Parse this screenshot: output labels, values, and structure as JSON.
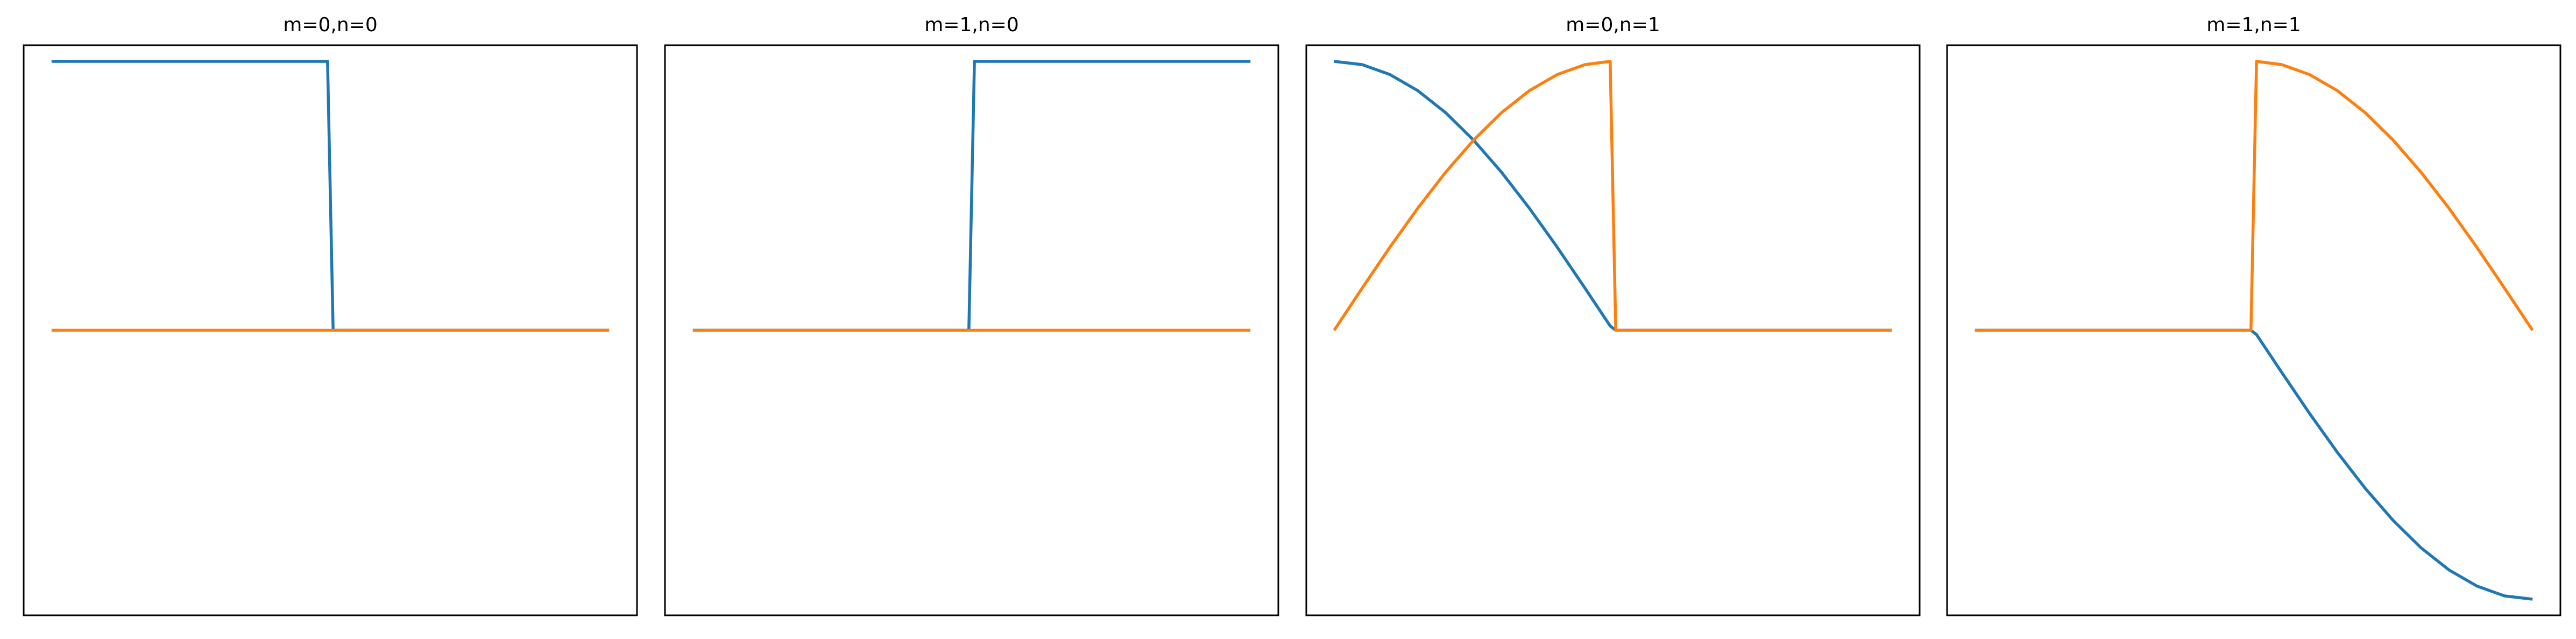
{
  "chart_data": [
    {
      "type": "line",
      "title": "m=0,n=0",
      "xlabel": "",
      "ylabel": "",
      "xlim": [
        -0.05,
        1.05
      ],
      "ylim": [
        -1.06,
        1.06
      ],
      "grid": false,
      "series": [
        {
          "color": "#1f77b4",
          "x": [
            0,
            0.495,
            0.505,
            1
          ],
          "y": [
            1,
            1,
            0,
            0
          ]
        },
        {
          "color": "#ff7f0e",
          "x": [
            0,
            0.495,
            0.505,
            1
          ],
          "y": [
            0,
            0,
            0,
            0
          ]
        }
      ]
    },
    {
      "type": "line",
      "title": "m=1,n=0",
      "xlabel": "",
      "ylabel": "",
      "xlim": [
        -0.05,
        1.05
      ],
      "ylim": [
        -1.06,
        1.06
      ],
      "grid": false,
      "series": [
        {
          "color": "#1f77b4",
          "x": [
            0,
            0.495,
            0.505,
            1
          ],
          "y": [
            0,
            0,
            1,
            1
          ]
        },
        {
          "color": "#ff7f0e",
          "x": [
            0,
            0.495,
            0.505,
            1
          ],
          "y": [
            0,
            0,
            0,
            0
          ]
        }
      ]
    },
    {
      "type": "line",
      "title": "m=0,n=1",
      "xlabel": "",
      "ylabel": "",
      "xlim": [
        -0.05,
        1.05
      ],
      "ylim": [
        -1.06,
        1.06
      ],
      "grid": false,
      "series": [
        {
          "color": "#1f77b4",
          "x": [
            0,
            0.05,
            0.1,
            0.15,
            0.2,
            0.25,
            0.3,
            0.35,
            0.4,
            0.45,
            0.495,
            0.505,
            0.55,
            0.6,
            0.65,
            0.7,
            0.75,
            0.8,
            0.85,
            0.9,
            0.95,
            1
          ],
          "y": [
            1,
            0.988,
            0.951,
            0.891,
            0.809,
            0.707,
            0.588,
            0.454,
            0.309,
            0.156,
            0.016,
            0,
            0,
            0,
            0,
            0,
            0,
            0,
            0,
            0,
            0,
            0
          ]
        },
        {
          "color": "#ff7f0e",
          "x": [
            0,
            0.05,
            0.1,
            0.15,
            0.2,
            0.25,
            0.3,
            0.35,
            0.4,
            0.45,
            0.495,
            0.505,
            0.55,
            0.6,
            0.65,
            0.7,
            0.75,
            0.8,
            0.85,
            0.9,
            0.95,
            1
          ],
          "y": [
            0,
            0.156,
            0.309,
            0.454,
            0.588,
            0.707,
            0.809,
            0.891,
            0.951,
            0.988,
            1,
            0,
            0,
            0,
            0,
            0,
            0,
            0,
            0,
            0,
            0,
            0
          ]
        }
      ]
    },
    {
      "type": "line",
      "title": "m=1,n=1",
      "xlabel": "",
      "ylabel": "",
      "xlim": [
        -0.05,
        1.05
      ],
      "ylim": [
        -1.06,
        1.06
      ],
      "grid": false,
      "series": [
        {
          "color": "#1f77b4",
          "x": [
            0,
            0.05,
            0.1,
            0.15,
            0.2,
            0.25,
            0.3,
            0.35,
            0.4,
            0.45,
            0.495,
            0.505,
            0.55,
            0.6,
            0.65,
            0.7,
            0.75,
            0.8,
            0.85,
            0.9,
            0.95,
            1
          ],
          "y": [
            0,
            0,
            0,
            0,
            0,
            0,
            0,
            0,
            0,
            0,
            0,
            -0.016,
            -0.156,
            -0.309,
            -0.454,
            -0.588,
            -0.707,
            -0.809,
            -0.891,
            -0.951,
            -0.988,
            -1
          ]
        },
        {
          "color": "#ff7f0e",
          "x": [
            0,
            0.05,
            0.1,
            0.15,
            0.2,
            0.25,
            0.3,
            0.35,
            0.4,
            0.45,
            0.495,
            0.505,
            0.55,
            0.6,
            0.65,
            0.7,
            0.75,
            0.8,
            0.85,
            0.9,
            0.95,
            1
          ],
          "y": [
            0,
            0,
            0,
            0,
            0,
            0,
            0,
            0,
            0,
            0,
            0,
            1,
            0.988,
            0.951,
            0.891,
            0.809,
            0.707,
            0.588,
            0.454,
            0.309,
            0.156,
            0
          ]
        }
      ]
    }
  ]
}
